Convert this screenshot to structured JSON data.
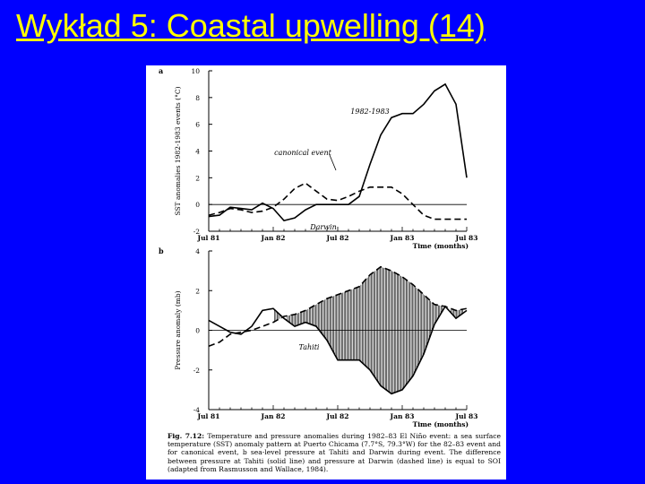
{
  "slide": {
    "title": "Wykład 5: Coastal upwelling (14) "
  },
  "colors": {
    "background": "#0000ff",
    "title": "#ffff00",
    "paper": "#ffffff"
  },
  "chart_data": [
    {
      "panel_label": "a",
      "type": "line",
      "ylabel": "SST anomalies 1982-1983 events (°C)",
      "xlabel": "Time (months)",
      "ylim": [
        -2,
        10
      ],
      "yticks": [
        -2,
        0,
        2,
        4,
        6,
        8,
        10
      ],
      "xticks": [
        "Jul 81",
        "Jan 82",
        "Jul 82",
        "Jan 83",
        "Jul 83"
      ],
      "series": [
        {
          "name": "1982-1983",
          "style": "solid",
          "x": [
            0,
            1,
            2,
            3,
            4,
            5,
            6,
            7,
            8,
            9,
            10,
            11,
            12,
            13,
            14,
            15,
            16,
            17,
            18,
            19,
            20,
            21,
            22,
            23,
            24
          ],
          "y": [
            -0.9,
            -0.8,
            -0.2,
            -0.3,
            -0.4,
            0.1,
            -0.3,
            -1.2,
            -1.0,
            -0.4,
            0.0,
            0.0,
            0.0,
            0.0,
            0.6,
            3.0,
            5.2,
            6.5,
            6.8,
            6.8,
            7.5,
            8.5,
            9.0,
            7.5,
            2.0
          ]
        },
        {
          "name": "canonical event",
          "style": "dashed",
          "x": [
            0,
            1,
            2,
            3,
            4,
            5,
            6,
            7,
            8,
            9,
            10,
            11,
            12,
            13,
            14,
            15,
            16,
            17,
            18,
            19,
            20,
            21,
            22,
            23,
            24
          ],
          "y": [
            -0.8,
            -0.6,
            -0.3,
            -0.4,
            -0.6,
            -0.5,
            -0.2,
            0.4,
            1.2,
            1.6,
            1.0,
            0.4,
            0.3,
            0.6,
            1.0,
            1.3,
            1.3,
            1.3,
            0.8,
            0.0,
            -0.8,
            -1.1,
            -1.1,
            -1.1,
            -1.1
          ]
        }
      ]
    },
    {
      "panel_label": "b",
      "type": "line",
      "ylabel": "Pressure anomaly (mb)",
      "xlabel": "Time (months)",
      "ylim": [
        -4,
        4
      ],
      "yticks": [
        -4,
        -2,
        0,
        2,
        4
      ],
      "xticks": [
        "Jul 81",
        "Jan 82",
        "Jul 82",
        "Jan 83",
        "Jul 83"
      ],
      "fill_between": "hatched",
      "series": [
        {
          "name": "Darwin",
          "style": "dashed",
          "x": [
            0,
            1,
            2,
            3,
            4,
            5,
            6,
            7,
            8,
            9,
            10,
            11,
            12,
            13,
            14,
            15,
            16,
            17,
            18,
            19,
            20,
            21,
            22,
            23,
            24
          ],
          "y": [
            -0.8,
            -0.6,
            -0.2,
            -0.1,
            0.0,
            0.2,
            0.4,
            0.7,
            0.8,
            1.0,
            1.3,
            1.6,
            1.8,
            2.0,
            2.2,
            2.8,
            3.2,
            3.0,
            2.7,
            2.3,
            1.8,
            1.3,
            1.2,
            1.0,
            1.1
          ]
        },
        {
          "name": "Tahiti",
          "style": "solid",
          "x": [
            0,
            1,
            2,
            3,
            4,
            5,
            6,
            7,
            8,
            9,
            10,
            11,
            12,
            13,
            14,
            15,
            16,
            17,
            18,
            19,
            20,
            21,
            22,
            23,
            24
          ],
          "y": [
            0.5,
            0.2,
            -0.1,
            -0.2,
            0.2,
            1.0,
            1.1,
            0.6,
            0.2,
            0.4,
            0.2,
            -0.5,
            -1.5,
            -1.5,
            -1.5,
            -2.0,
            -2.8,
            -3.2,
            -3.0,
            -2.3,
            -1.2,
            0.3,
            1.2,
            0.6,
            1.0
          ]
        }
      ]
    }
  ],
  "caption": {
    "fig": "Fig. 7.12:",
    "text": " Temperature and pressure anomalies during 1982–83 El Niño event: a sea surface temperature (SST) anomaly pattern at Puerto Chicama (7.7°S, 79.3°W) for the 82–83 event and for canonical event, b sea-level pressure at Tahiti and Darwin during event. The difference between pressure at Tahiti (solid line) and pressure at Darwin (dashed line) is equal to SOI (adapted from Rasmusson and Wallace, 1984)."
  }
}
